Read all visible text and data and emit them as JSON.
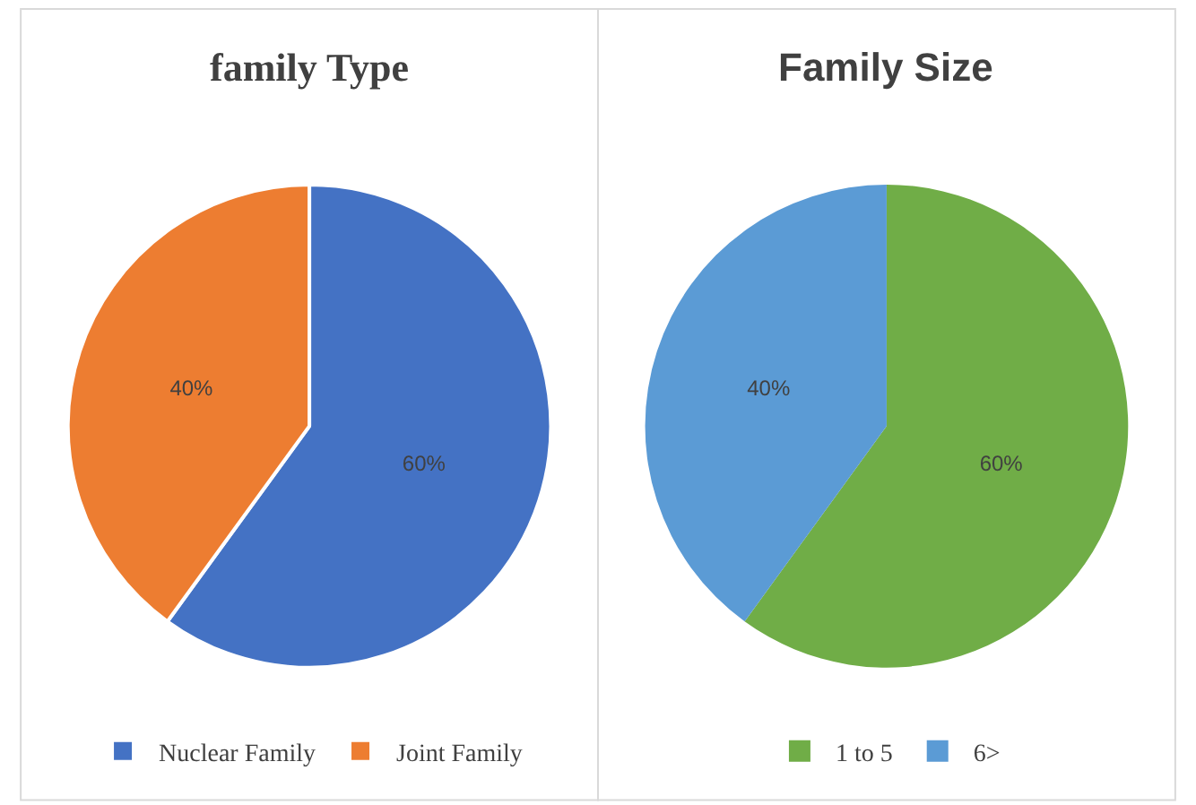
{
  "chart_data": [
    {
      "type": "pie",
      "title": "family Type",
      "categories": [
        "Nuclear Family",
        "Joint Family"
      ],
      "values": [
        60,
        40
      ],
      "colors": [
        "#4472c4",
        "#ed7d31"
      ],
      "value_labels": [
        "60%",
        "40%"
      ],
      "legend": "bottom"
    },
    {
      "type": "pie",
      "title": "Family Size",
      "categories": [
        "1 to 5",
        "6>"
      ],
      "values": [
        60,
        40
      ],
      "colors": [
        "#70ad47",
        "#5b9bd5"
      ],
      "value_labels": [
        "60%",
        "40%"
      ],
      "legend": "bottom"
    }
  ]
}
